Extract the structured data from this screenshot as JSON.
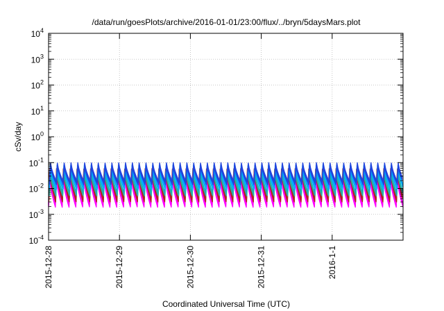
{
  "chart_data": {
    "type": "line",
    "title": "/data/run/goesPlots/archive/2016-01-01/23:00/flux/../bryn/5daysMars.plot",
    "xlabel": "Coordinated Universal Time (UTC)",
    "ylabel": "cSv/day",
    "y_scale": "log",
    "ylim_exponents": [
      -4,
      4
    ],
    "y_ticks": [
      {
        "base": "10",
        "exp": "-4"
      },
      {
        "base": "10",
        "exp": "-3"
      },
      {
        "base": "10",
        "exp": "-2"
      },
      {
        "base": "10",
        "exp": "-1"
      },
      {
        "base": "10",
        "exp": "0"
      },
      {
        "base": "10",
        "exp": "1"
      },
      {
        "base": "10",
        "exp": "2"
      },
      {
        "base": "10",
        "exp": "3"
      },
      {
        "base": "10",
        "exp": "4"
      }
    ],
    "x_ticks": [
      "2015-12-28",
      "2015-12-29",
      "2015-12-30",
      "2015-12-31",
      "2016-1-1"
    ],
    "xlim_days": [
      0,
      5
    ],
    "cycles_per_day": 10.4,
    "grid": true,
    "legend": "none",
    "series": [
      {
        "color": "#ff00ff",
        "peak": 0.03,
        "trough": 0.0022
      },
      {
        "color": "#b22222",
        "peak": 0.05,
        "trough": 0.0035
      },
      {
        "color": "#20b2aa",
        "peak": 0.045,
        "trough": 0.006
      },
      {
        "color": "#00aaff",
        "peak": 0.07,
        "trough": 0.01
      },
      {
        "color": "#2244dd",
        "peak": 0.085,
        "trough": 0.016
      }
    ]
  }
}
